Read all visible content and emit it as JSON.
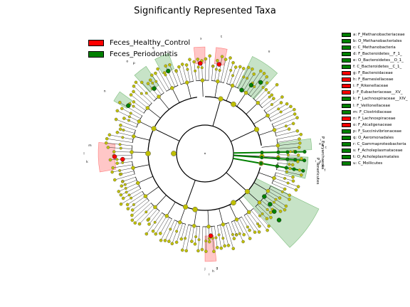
{
  "title": "Significantly Represented Taxa",
  "colors": {
    "healthy": "#ff0000",
    "periodontitis": "#008000",
    "node": "#bfbf00",
    "line": "#000000"
  },
  "groups": [
    {
      "label": "Feces_Healthy_Control",
      "color": "#ff0000"
    },
    {
      "label": "Feces_Periodontitis",
      "color": "#008000"
    }
  ],
  "taxa": [
    {
      "key": "a",
      "label": "a: F_Methanobacteriaceae",
      "group": "periodontitis"
    },
    {
      "key": "b",
      "label": "b: O_Methanobacteriales",
      "group": "periodontitis"
    },
    {
      "key": "c",
      "label": "c: C_Methanobacteria",
      "group": "periodontitis"
    },
    {
      "key": "d",
      "label": "d: F_Bacteroidetes__F_1_",
      "group": "periodontitis"
    },
    {
      "key": "e",
      "label": "e: O_Bacteroidetes__O_1_",
      "group": "periodontitis"
    },
    {
      "key": "f",
      "label": "f: C_Bacteroidetes__C_1_",
      "group": "periodontitis"
    },
    {
      "key": "g",
      "label": "g: F_Bacteroidaceae",
      "group": "healthy"
    },
    {
      "key": "h",
      "label": "h: F_Barnesiellaceae",
      "group": "healthy"
    },
    {
      "key": "i",
      "label": "i: F_Rikenellaceae",
      "group": "healthy"
    },
    {
      "key": "j",
      "label": "j: F_Eubacteriaceae__XV_",
      "group": "healthy"
    },
    {
      "key": "k",
      "label": "k: F_Lachnospiraceae__XIV_",
      "group": "periodontitis"
    },
    {
      "key": "l",
      "label": "l: F_Veillonellaceae",
      "group": "periodontitis"
    },
    {
      "key": "m",
      "label": "m: F_Clostridiaceae",
      "group": "periodontitis"
    },
    {
      "key": "n",
      "label": "n: F_Lachnospiraceae",
      "group": "healthy"
    },
    {
      "key": "o",
      "label": "o: F_Alcaligenaceae",
      "group": "healthy"
    },
    {
      "key": "p",
      "label": "p: F_Succinivibrionaceae",
      "group": "periodontitis"
    },
    {
      "key": "q",
      "label": "q: O_Aeromonadales",
      "group": "periodontitis"
    },
    {
      "key": "r",
      "label": "r: C_Gammaproteobacteria",
      "group": "periodontitis"
    },
    {
      "key": "s",
      "label": "s: F_Acholeplasmataceae",
      "group": "periodontitis"
    },
    {
      "key": "t",
      "label": "t: O_Acholeplasmatales",
      "group": "periodontitis"
    },
    {
      "key": "u",
      "label": "u: C_Mollicutes",
      "group": "periodontitis"
    }
  ],
  "sector_labels": {
    "euryarchaeota": "P_Euryarchaeota",
    "tenericutes": "P_Tenericutes"
  }
}
